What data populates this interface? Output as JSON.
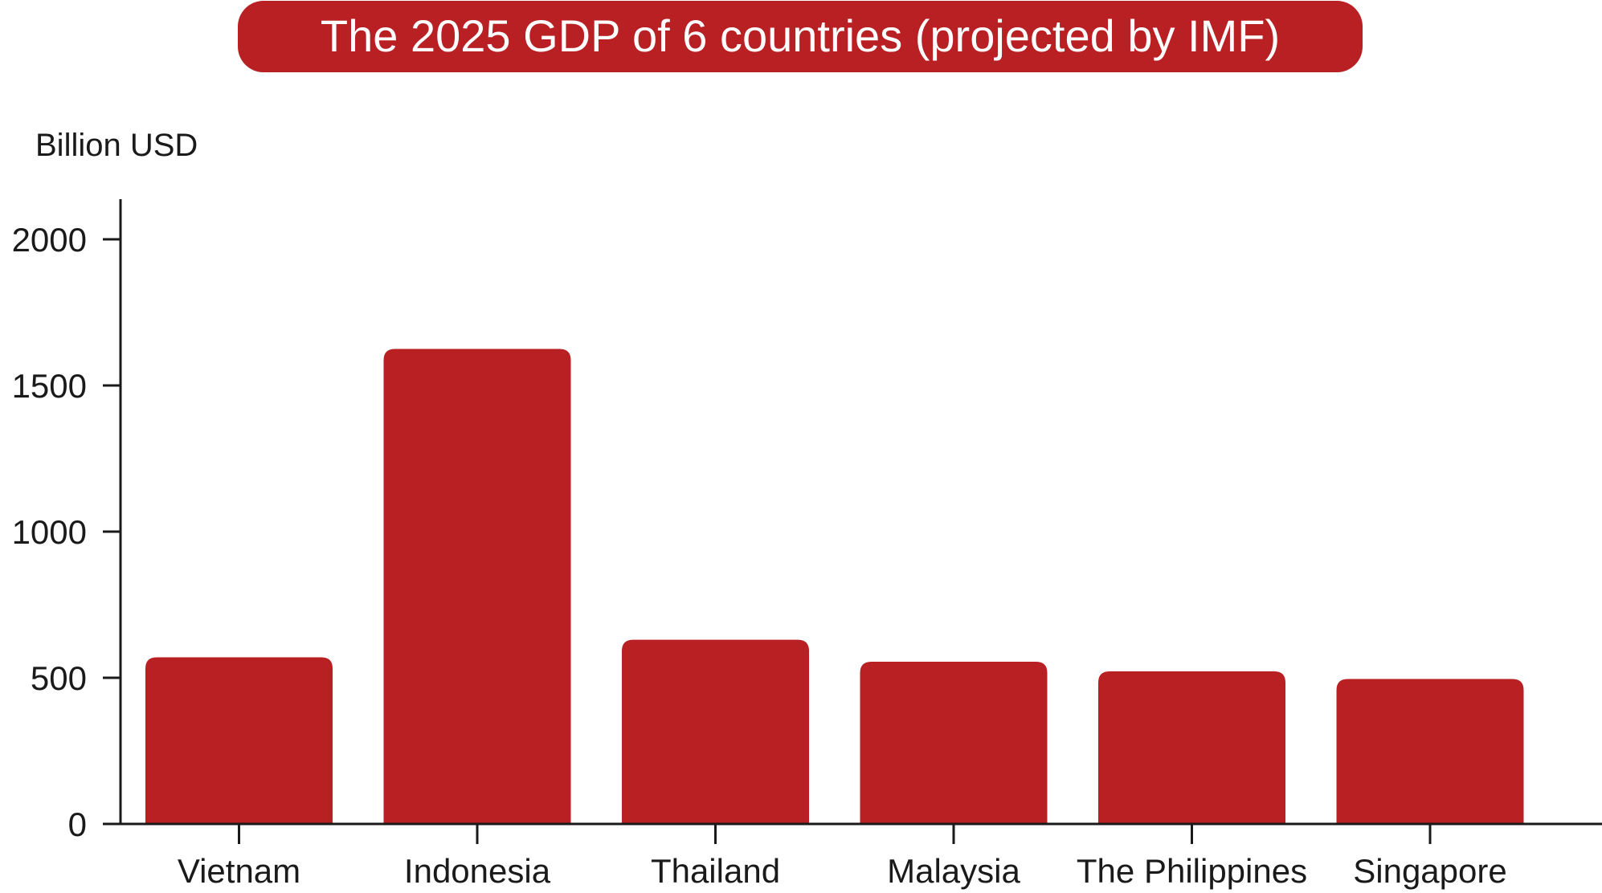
{
  "chart_data": {
    "type": "bar",
    "title": "The 2025 GDP of 6 countries (projected by IMF)",
    "ylabel": "Billion USD",
    "xlabel": "",
    "categories": [
      "Vietnam",
      "Indonesia",
      "Thailand",
      "Malaysia",
      "The Philippines",
      "Singapore"
    ],
    "values": [
      570,
      1625,
      630,
      555,
      522,
      496
    ],
    "ylim": [
      0,
      2000
    ],
    "yticks": [
      0,
      500,
      1000,
      1500,
      2000
    ],
    "grid": false,
    "legend": "none",
    "colors": {
      "bar": "#b92023",
      "title_background": "#b92023",
      "title_text": "#ffffff",
      "axis": "#1a1a1a"
    }
  }
}
